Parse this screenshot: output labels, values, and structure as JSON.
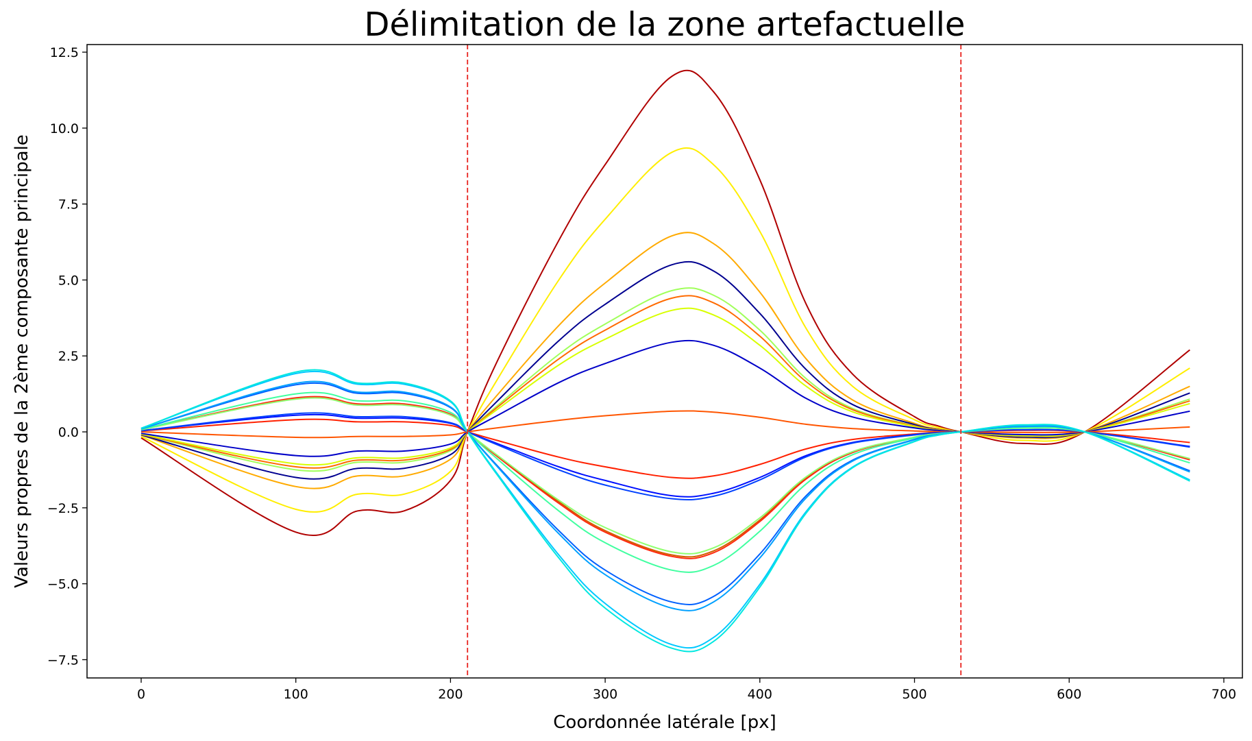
{
  "chart_data": {
    "type": "line",
    "title": "Délimitation de la zone artefactuelle",
    "xlabel": "Coordonnée latérale [px]",
    "ylabel": "Valeurs propres de la 2ème composante principale",
    "xlim": [
      -35,
      712
    ],
    "ylim": [
      -8.1,
      12.75
    ],
    "xticks": [
      0,
      100,
      200,
      300,
      400,
      500,
      600,
      700
    ],
    "xtick_labels": [
      "0",
      "100",
      "200",
      "300",
      "400",
      "500",
      "600",
      "700"
    ],
    "yticks": [
      -7.5,
      -5.0,
      -2.5,
      0.0,
      2.5,
      5.0,
      7.5,
      10.0,
      12.5
    ],
    "ytick_labels": [
      "−7.5",
      "−5.0",
      "−2.5",
      "0.0",
      "2.5",
      "5.0",
      "7.5",
      "10.0",
      "12.5"
    ],
    "grid": false,
    "vlines": [
      {
        "x": 211,
        "color": "#e8231e",
        "style": "dashed"
      },
      {
        "x": 530,
        "color": "#e8231e",
        "style": "dashed"
      }
    ],
    "x": [
      0,
      100,
      140,
      170,
      200,
      211,
      230,
      270,
      300,
      343,
      370,
      400,
      430,
      460,
      500,
      515,
      530,
      570,
      610,
      678
    ],
    "series": [
      {
        "color": "#b00000",
        "values": [
          -0.2,
          -3.3,
          -2.6,
          -2.6,
          -1.6,
          0,
          2.3,
          6.3,
          8.8,
          11.7,
          11.2,
          8.3,
          4.2,
          1.9,
          0.5,
          0.2,
          0,
          -0.38,
          0,
          2.7
        ]
      },
      {
        "color": "#ffee00",
        "values": [
          -0.15,
          -2.55,
          -2.05,
          -2.05,
          -1.3,
          0,
          1.7,
          5.0,
          7.0,
          9.2,
          8.8,
          6.6,
          3.4,
          1.5,
          0.4,
          0.15,
          0,
          -0.28,
          0,
          2.1
        ]
      },
      {
        "color": "#ffaa00",
        "values": [
          -0.1,
          -1.8,
          -1.45,
          -1.45,
          -0.9,
          0,
          1.2,
          3.5,
          4.9,
          6.45,
          6.2,
          4.6,
          2.4,
          1.05,
          0.28,
          0.1,
          0,
          -0.2,
          0,
          1.5
        ]
      },
      {
        "color": "#000090",
        "values": [
          -0.1,
          -1.5,
          -1.2,
          -1.2,
          -0.75,
          0,
          1.0,
          3.0,
          4.2,
          5.5,
          5.3,
          3.9,
          2.05,
          0.9,
          0.24,
          0.08,
          0,
          -0.17,
          0,
          1.28
        ]
      },
      {
        "color": "#a0ff5a",
        "values": [
          -0.08,
          -1.25,
          -1.0,
          -1.0,
          -0.62,
          0,
          0.85,
          2.55,
          3.55,
          4.65,
          4.5,
          3.35,
          1.75,
          0.77,
          0.2,
          0.07,
          0,
          -0.14,
          0,
          1.08
        ]
      },
      {
        "color": "#ff6a00",
        "values": [
          -0.08,
          -1.15,
          -0.93,
          -0.93,
          -0.58,
          0,
          0.8,
          2.4,
          3.35,
          4.4,
          4.25,
          3.15,
          1.65,
          0.73,
          0.19,
          0.07,
          0,
          -0.13,
          0,
          1.02
        ]
      },
      {
        "color": "#d8ff00",
        "values": [
          -0.07,
          -1.05,
          -0.85,
          -0.85,
          -0.53,
          0,
          0.73,
          2.2,
          3.05,
          4.0,
          3.85,
          2.85,
          1.5,
          0.66,
          0.17,
          0.06,
          0,
          -0.12,
          0,
          0.93
        ]
      },
      {
        "color": "#0000c8",
        "values": [
          -0.05,
          -0.78,
          -0.63,
          -0.63,
          -0.4,
          0,
          0.53,
          1.62,
          2.25,
          2.95,
          2.85,
          2.1,
          1.1,
          0.49,
          0.13,
          0.05,
          0,
          -0.09,
          0,
          0.68
        ]
      },
      {
        "color": "#ff5500",
        "values": [
          0,
          -0.18,
          -0.15,
          -0.15,
          -0.1,
          0,
          0.13,
          0.38,
          0.53,
          0.68,
          0.65,
          0.48,
          0.25,
          0.11,
          0.03,
          0.01,
          0,
          -0.02,
          0,
          0.16
        ]
      },
      {
        "color": "#ff2000",
        "values": [
          0.03,
          0.4,
          0.33,
          0.33,
          0.21,
          0,
          -0.28,
          -0.83,
          -1.15,
          -1.5,
          -1.45,
          -1.07,
          -0.56,
          -0.25,
          -0.07,
          -0.02,
          0,
          0.05,
          0,
          -0.35
        ]
      },
      {
        "color": "#0010ff",
        "values": [
          0.04,
          0.55,
          0.45,
          0.45,
          0.28,
          0,
          -0.38,
          -1.15,
          -1.6,
          -2.1,
          -2.02,
          -1.5,
          -0.78,
          -0.35,
          -0.09,
          -0.03,
          0,
          0.07,
          0,
          -0.48
        ]
      },
      {
        "color": "#0040ff",
        "values": [
          0.04,
          0.6,
          0.5,
          0.5,
          0.3,
          0,
          -0.42,
          -1.25,
          -1.75,
          -2.2,
          -2.12,
          -1.58,
          -0.82,
          -0.37,
          -0.1,
          -0.03,
          0,
          0.07,
          0,
          -0.5
        ]
      },
      {
        "color": "#d06000",
        "values": [
          0.07,
          1.1,
          0.9,
          0.9,
          0.57,
          0,
          -0.78,
          -2.3,
          -3.25,
          -4.05,
          -3.92,
          -2.9,
          -1.52,
          -0.67,
          -0.18,
          -0.06,
          0,
          0.13,
          0,
          -0.9
        ]
      },
      {
        "color": "#ff2a10",
        "values": [
          0.07,
          1.12,
          0.92,
          0.92,
          0.58,
          0,
          -0.8,
          -2.35,
          -3.3,
          -4.1,
          -3.98,
          -2.95,
          -1.55,
          -0.68,
          -0.18,
          -0.06,
          0,
          0.13,
          0,
          -0.92
        ]
      },
      {
        "color": "#90ff70",
        "values": [
          0.07,
          1.08,
          0.88,
          0.88,
          0.55,
          0,
          -0.76,
          -2.25,
          -3.15,
          -3.95,
          -3.82,
          -2.83,
          -1.48,
          -0.65,
          -0.17,
          -0.06,
          0,
          0.12,
          0,
          -0.88
        ]
      },
      {
        "color": "#40ffa0",
        "values": [
          0.08,
          1.25,
          1.02,
          1.02,
          0.64,
          0,
          -0.88,
          -2.6,
          -3.65,
          -4.55,
          -4.4,
          -3.27,
          -1.71,
          -0.75,
          -0.2,
          -0.07,
          0,
          0.14,
          0,
          -1.02
        ]
      },
      {
        "color": "#0060ff",
        "values": [
          0.1,
          1.55,
          1.27,
          1.27,
          0.8,
          0,
          -1.1,
          -3.25,
          -4.55,
          -5.6,
          -5.42,
          -4.02,
          -2.1,
          -0.93,
          -0.25,
          -0.09,
          0,
          0.18,
          0,
          -1.28
        ]
      },
      {
        "color": "#00a0ff",
        "values": [
          0.1,
          1.6,
          1.31,
          1.31,
          0.82,
          0,
          -1.13,
          -3.35,
          -4.7,
          -5.8,
          -5.6,
          -4.15,
          -2.17,
          -0.96,
          -0.26,
          -0.09,
          0,
          0.18,
          0,
          -1.32
        ]
      },
      {
        "color": "#00c8ff",
        "values": [
          0.12,
          1.92,
          1.57,
          1.57,
          0.99,
          0,
          -1.36,
          -4.05,
          -5.65,
          -7.0,
          -6.77,
          -5.02,
          -2.62,
          -1.16,
          -0.31,
          -0.11,
          0,
          0.22,
          0,
          -1.58
        ]
      },
      {
        "color": "#00e8e0",
        "values": [
          0.12,
          1.97,
          1.61,
          1.61,
          1.02,
          0,
          -1.4,
          -4.15,
          -5.8,
          -7.12,
          -6.9,
          -5.11,
          -2.67,
          -1.18,
          -0.32,
          -0.11,
          0,
          0.23,
          0,
          -1.62
        ]
      }
    ]
  }
}
